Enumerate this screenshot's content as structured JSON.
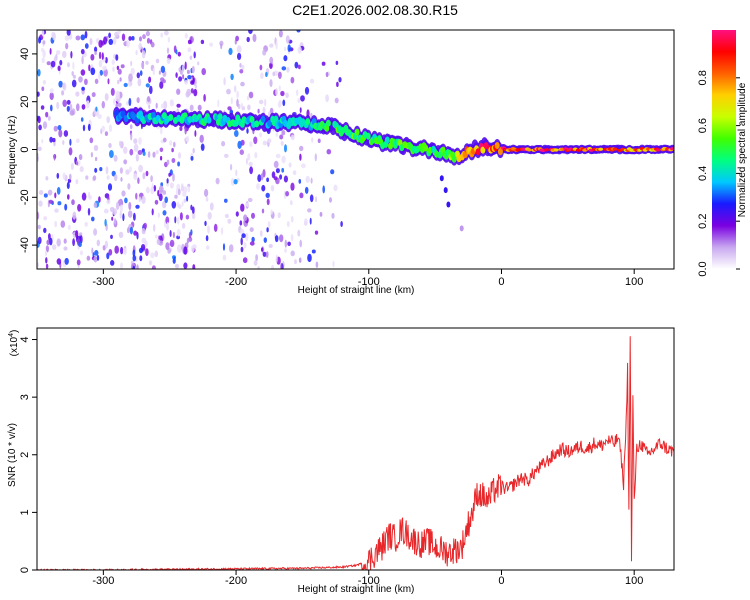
{
  "title": "C2E1.2026.002.08.30.R15",
  "chart_data": [
    {
      "type": "heatmap",
      "xlabel": "Height of straight line (km)",
      "ylabel": "Frequency (Hz)",
      "xlim": [
        -350,
        130
      ],
      "ylim": [
        -50,
        50
      ],
      "x_ticks": [
        -300,
        -200,
        -100,
        0,
        100
      ],
      "y_ticks": [
        -40,
        -20,
        0,
        20,
        40
      ],
      "colorbar": {
        "label": "Normalized spectral amplitude",
        "range": [
          0,
          1
        ],
        "ticks": [
          "0.0",
          "0.2",
          "0.4",
          "0.6",
          "0.8"
        ],
        "stops": [
          "#ffffff",
          "#c8a8f0",
          "#7a00e0",
          "#1a1aff",
          "#00c8ff",
          "#00ff80",
          "#40ff00",
          "#c8ff00",
          "#ffd000",
          "#ff6000",
          "#ff0000",
          "#ff1080"
        ]
      },
      "ridge": {
        "description": "dominant frequency track",
        "x": [
          -290,
          -250,
          -200,
          -150,
          -130,
          -110,
          -90,
          -70,
          -55,
          -45,
          -35,
          -25,
          -15,
          -5,
          5,
          20,
          50,
          90,
          100,
          130
        ],
        "y": [
          14,
          13,
          12,
          11,
          10,
          6,
          3,
          1,
          0,
          -1,
          -3,
          -1,
          1,
          1,
          0,
          0,
          0,
          0,
          0,
          0
        ],
        "amplitude": [
          0.35,
          0.45,
          0.45,
          0.4,
          0.5,
          0.55,
          0.5,
          0.55,
          0.55,
          0.5,
          0.6,
          0.85,
          0.9,
          0.9,
          0.95,
          0.95,
          0.95,
          0.9,
          0.8,
          0.95
        ]
      }
    },
    {
      "type": "line",
      "xlabel": "Height of straight line (km)",
      "ylabel": "SNR (10 * v/v)",
      "ylabel_multiplier": "(x10",
      "ylabel_exponent": "4",
      "xlim": [
        -350,
        130
      ],
      "ylim": [
        0,
        4.2
      ],
      "x_ticks": [
        -300,
        -200,
        -100,
        0,
        100
      ],
      "y_ticks": [
        0,
        1,
        2,
        3,
        4
      ],
      "series": [
        {
          "color": "#e8272a",
          "x": [
            -350,
            -300,
            -250,
            -200,
            -150,
            -120,
            -110,
            -100,
            -95,
            -90,
            -85,
            -80,
            -75,
            -70,
            -65,
            -60,
            -55,
            -50,
            -45,
            -40,
            -35,
            -30,
            -25,
            -22,
            -18,
            -15,
            -10,
            -5,
            0,
            5,
            10,
            15,
            20,
            25,
            30,
            35,
            40,
            45,
            50,
            55,
            60,
            65,
            70,
            75,
            80,
            85,
            88,
            90,
            92,
            94,
            95,
            96,
            97,
            98,
            99,
            100,
            102,
            105,
            110,
            115,
            120,
            125,
            130
          ],
          "y": [
            0.0,
            0.0,
            0.01,
            0.02,
            0.03,
            0.05,
            0.08,
            0.15,
            0.3,
            0.4,
            0.6,
            0.55,
            0.7,
            0.6,
            0.5,
            0.45,
            0.5,
            0.4,
            0.35,
            0.3,
            0.35,
            0.4,
            0.8,
            1.0,
            1.35,
            1.3,
            1.2,
            1.4,
            1.45,
            1.4,
            1.5,
            1.6,
            1.55,
            1.7,
            1.8,
            1.9,
            2.0,
            2.1,
            2.05,
            2.1,
            2.15,
            2.1,
            2.2,
            2.15,
            2.25,
            2.2,
            2.3,
            2.0,
            1.5,
            2.6,
            3.5,
            1.0,
            4.0,
            0.2,
            3.0,
            1.2,
            2.1,
            2.2,
            2.0,
            2.1,
            2.2,
            2.1,
            2.05
          ]
        }
      ]
    }
  ]
}
